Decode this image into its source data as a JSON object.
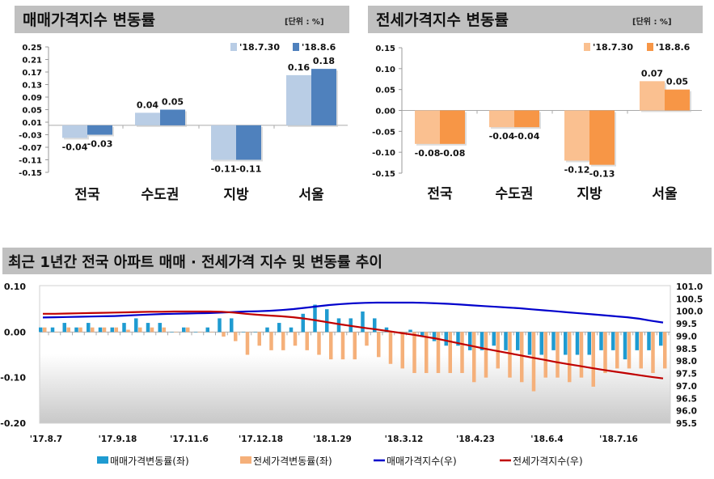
{
  "colors": {
    "sale_prev": "#b9cde5",
    "sale_curr": "#4f81bd",
    "jeonse_prev": "#fac090",
    "jeonse_curr": "#f79646",
    "sale_rate_bar": "#1f9bd1",
    "jeonse_rate_bar": "#f5b07a",
    "sale_index_line": "#0000cc",
    "jeonse_index_line": "#c00000",
    "title_bar": "#c0c0c0"
  },
  "chart_data": [
    {
      "type": "bar",
      "title": "매매가격지수 변동률",
      "unit": "[단위 : %]",
      "categories": [
        "전국",
        "수도권",
        "지방",
        "서울"
      ],
      "series": [
        {
          "name": "'18.7.30",
          "values": [
            -0.04,
            0.04,
            -0.11,
            0.16
          ],
          "labels": [
            "-0.04",
            "0.04",
            "-0.11",
            "0.16"
          ]
        },
        {
          "name": "'18.8.6",
          "values": [
            -0.03,
            0.05,
            -0.11,
            0.18
          ],
          "labels": [
            "-0.03",
            "0.05",
            "-0.11",
            "0.18"
          ]
        }
      ],
      "ylim": [
        -0.15,
        0.25
      ],
      "yticks": [
        "0.25",
        "0.21",
        "0.17",
        "0.13",
        "0.09",
        "0.05",
        "0.01",
        "-0.03",
        "-0.07",
        "-0.11",
        "-0.15"
      ],
      "legend": "top-right",
      "grid": false
    },
    {
      "type": "bar",
      "title": "전세가격지수 변동률",
      "unit": "[단위 : %]",
      "categories": [
        "전국",
        "수도권",
        "지방",
        "서울"
      ],
      "series": [
        {
          "name": "'18.7.30",
          "values": [
            -0.08,
            -0.04,
            -0.12,
            0.07
          ],
          "labels": [
            "-0.08",
            "-0.04",
            "-0.12",
            "0.07"
          ]
        },
        {
          "name": "'18.8.6",
          "values": [
            -0.08,
            -0.04,
            -0.13,
            0.05
          ],
          "labels": [
            "-0.08",
            "-0.04",
            "-0.13",
            "0.05"
          ]
        }
      ],
      "ylim": [
        -0.15,
        0.15
      ],
      "yticks": [
        "0.15",
        "0.10",
        "0.05",
        "0.00",
        "-0.05",
        "-0.10",
        "-0.15"
      ],
      "legend": "top-right",
      "grid": false
    },
    {
      "type": "bar+line",
      "title": "최근 1년간 전국 아파트 매매 · 전세가격 지수 및 변동률 추이",
      "xticks": [
        "'17.8.7",
        "'17.9.18",
        "'17.11.6",
        "'17.12.18",
        "'18.1.29",
        "'18.3.12",
        "'18.4.23",
        "'18.6.4",
        "'18.7.16"
      ],
      "weeks": 53,
      "ylim_left": [
        -0.2,
        0.1
      ],
      "yticks_left": [
        "0.10",
        "0.00",
        "-0.10",
        "-0.20"
      ],
      "ylim_right": [
        95.5,
        101.0
      ],
      "yticks_right": [
        "101.0",
        "100.5",
        "100.0",
        "99.5",
        "99.0",
        "98.5",
        "98.0",
        "97.5",
        "97.0",
        "96.5",
        "96.0",
        "95.5"
      ],
      "legend": "bottom",
      "series": [
        {
          "name": "매매가격변동률(좌)",
          "type": "bar",
          "axis": "left",
          "values": [
            0.01,
            0.01,
            0.02,
            0.01,
            0.02,
            0.01,
            0.01,
            0.02,
            0.03,
            0.02,
            0.02,
            0.0,
            0.01,
            0.0,
            0.01,
            0.03,
            0.03,
            0.0,
            0.0,
            0.01,
            0.02,
            0.01,
            0.04,
            0.06,
            0.05,
            0.03,
            0.03,
            0.045,
            0.03,
            0.01,
            0.0,
            0.005,
            -0.01,
            -0.02,
            -0.03,
            -0.03,
            -0.04,
            -0.04,
            -0.03,
            -0.04,
            -0.04,
            -0.05,
            -0.05,
            -0.04,
            -0.05,
            -0.05,
            -0.05,
            -0.04,
            -0.04,
            -0.06,
            -0.04,
            -0.04,
            -0.03
          ]
        },
        {
          "name": "전세가격변동률(좌)",
          "type": "bar",
          "axis": "left",
          "values": [
            0.01,
            0.0,
            0.01,
            0.01,
            0.01,
            0.01,
            0.01,
            0.005,
            0.01,
            0.01,
            0.01,
            0.0,
            0.01,
            0.0,
            0.0,
            -0.01,
            -0.02,
            -0.05,
            -0.03,
            -0.04,
            -0.04,
            -0.03,
            -0.04,
            -0.05,
            -0.06,
            -0.06,
            -0.06,
            -0.03,
            -0.055,
            -0.07,
            -0.08,
            -0.09,
            -0.09,
            -0.09,
            -0.09,
            -0.09,
            -0.11,
            -0.1,
            -0.08,
            -0.1,
            -0.11,
            -0.13,
            -0.1,
            -0.1,
            -0.11,
            -0.1,
            -0.12,
            -0.09,
            -0.08,
            -0.08,
            -0.08,
            -0.09,
            -0.08
          ]
        },
        {
          "name": "매매가격지수(우)",
          "type": "line",
          "axis": "right",
          "values": [
            99.75,
            99.76,
            99.77,
            99.78,
            99.79,
            99.8,
            99.81,
            99.83,
            99.85,
            99.87,
            99.89,
            99.9,
            99.91,
            99.92,
            99.93,
            99.95,
            99.97,
            99.99,
            100.0,
            100.02,
            100.05,
            100.09,
            100.14,
            100.2,
            100.25,
            100.29,
            100.32,
            100.34,
            100.35,
            100.35,
            100.35,
            100.35,
            100.34,
            100.32,
            100.3,
            100.27,
            100.24,
            100.21,
            100.18,
            100.15,
            100.12,
            100.08,
            100.04,
            100.0,
            99.96,
            99.92,
            99.88,
            99.84,
            99.8,
            99.76,
            99.7,
            99.62,
            99.55
          ]
        },
        {
          "name": "전세가격지수(우)",
          "type": "line",
          "axis": "right",
          "values": [
            99.9,
            99.9,
            99.91,
            99.92,
            99.93,
            99.94,
            99.95,
            99.96,
            99.97,
            99.98,
            99.98,
            99.99,
            99.99,
            99.99,
            99.99,
            99.98,
            99.95,
            99.9,
            99.86,
            99.83,
            99.8,
            99.76,
            99.7,
            99.63,
            99.55,
            99.47,
            99.4,
            99.33,
            99.27,
            99.2,
            99.13,
            99.06,
            98.98,
            98.9,
            98.8,
            98.7,
            98.6,
            98.5,
            98.41,
            98.32,
            98.23,
            98.14,
            98.05,
            97.96,
            97.88,
            97.8,
            97.72,
            97.64,
            97.57,
            97.5,
            97.43,
            97.36,
            97.3
          ]
        }
      ]
    }
  ]
}
